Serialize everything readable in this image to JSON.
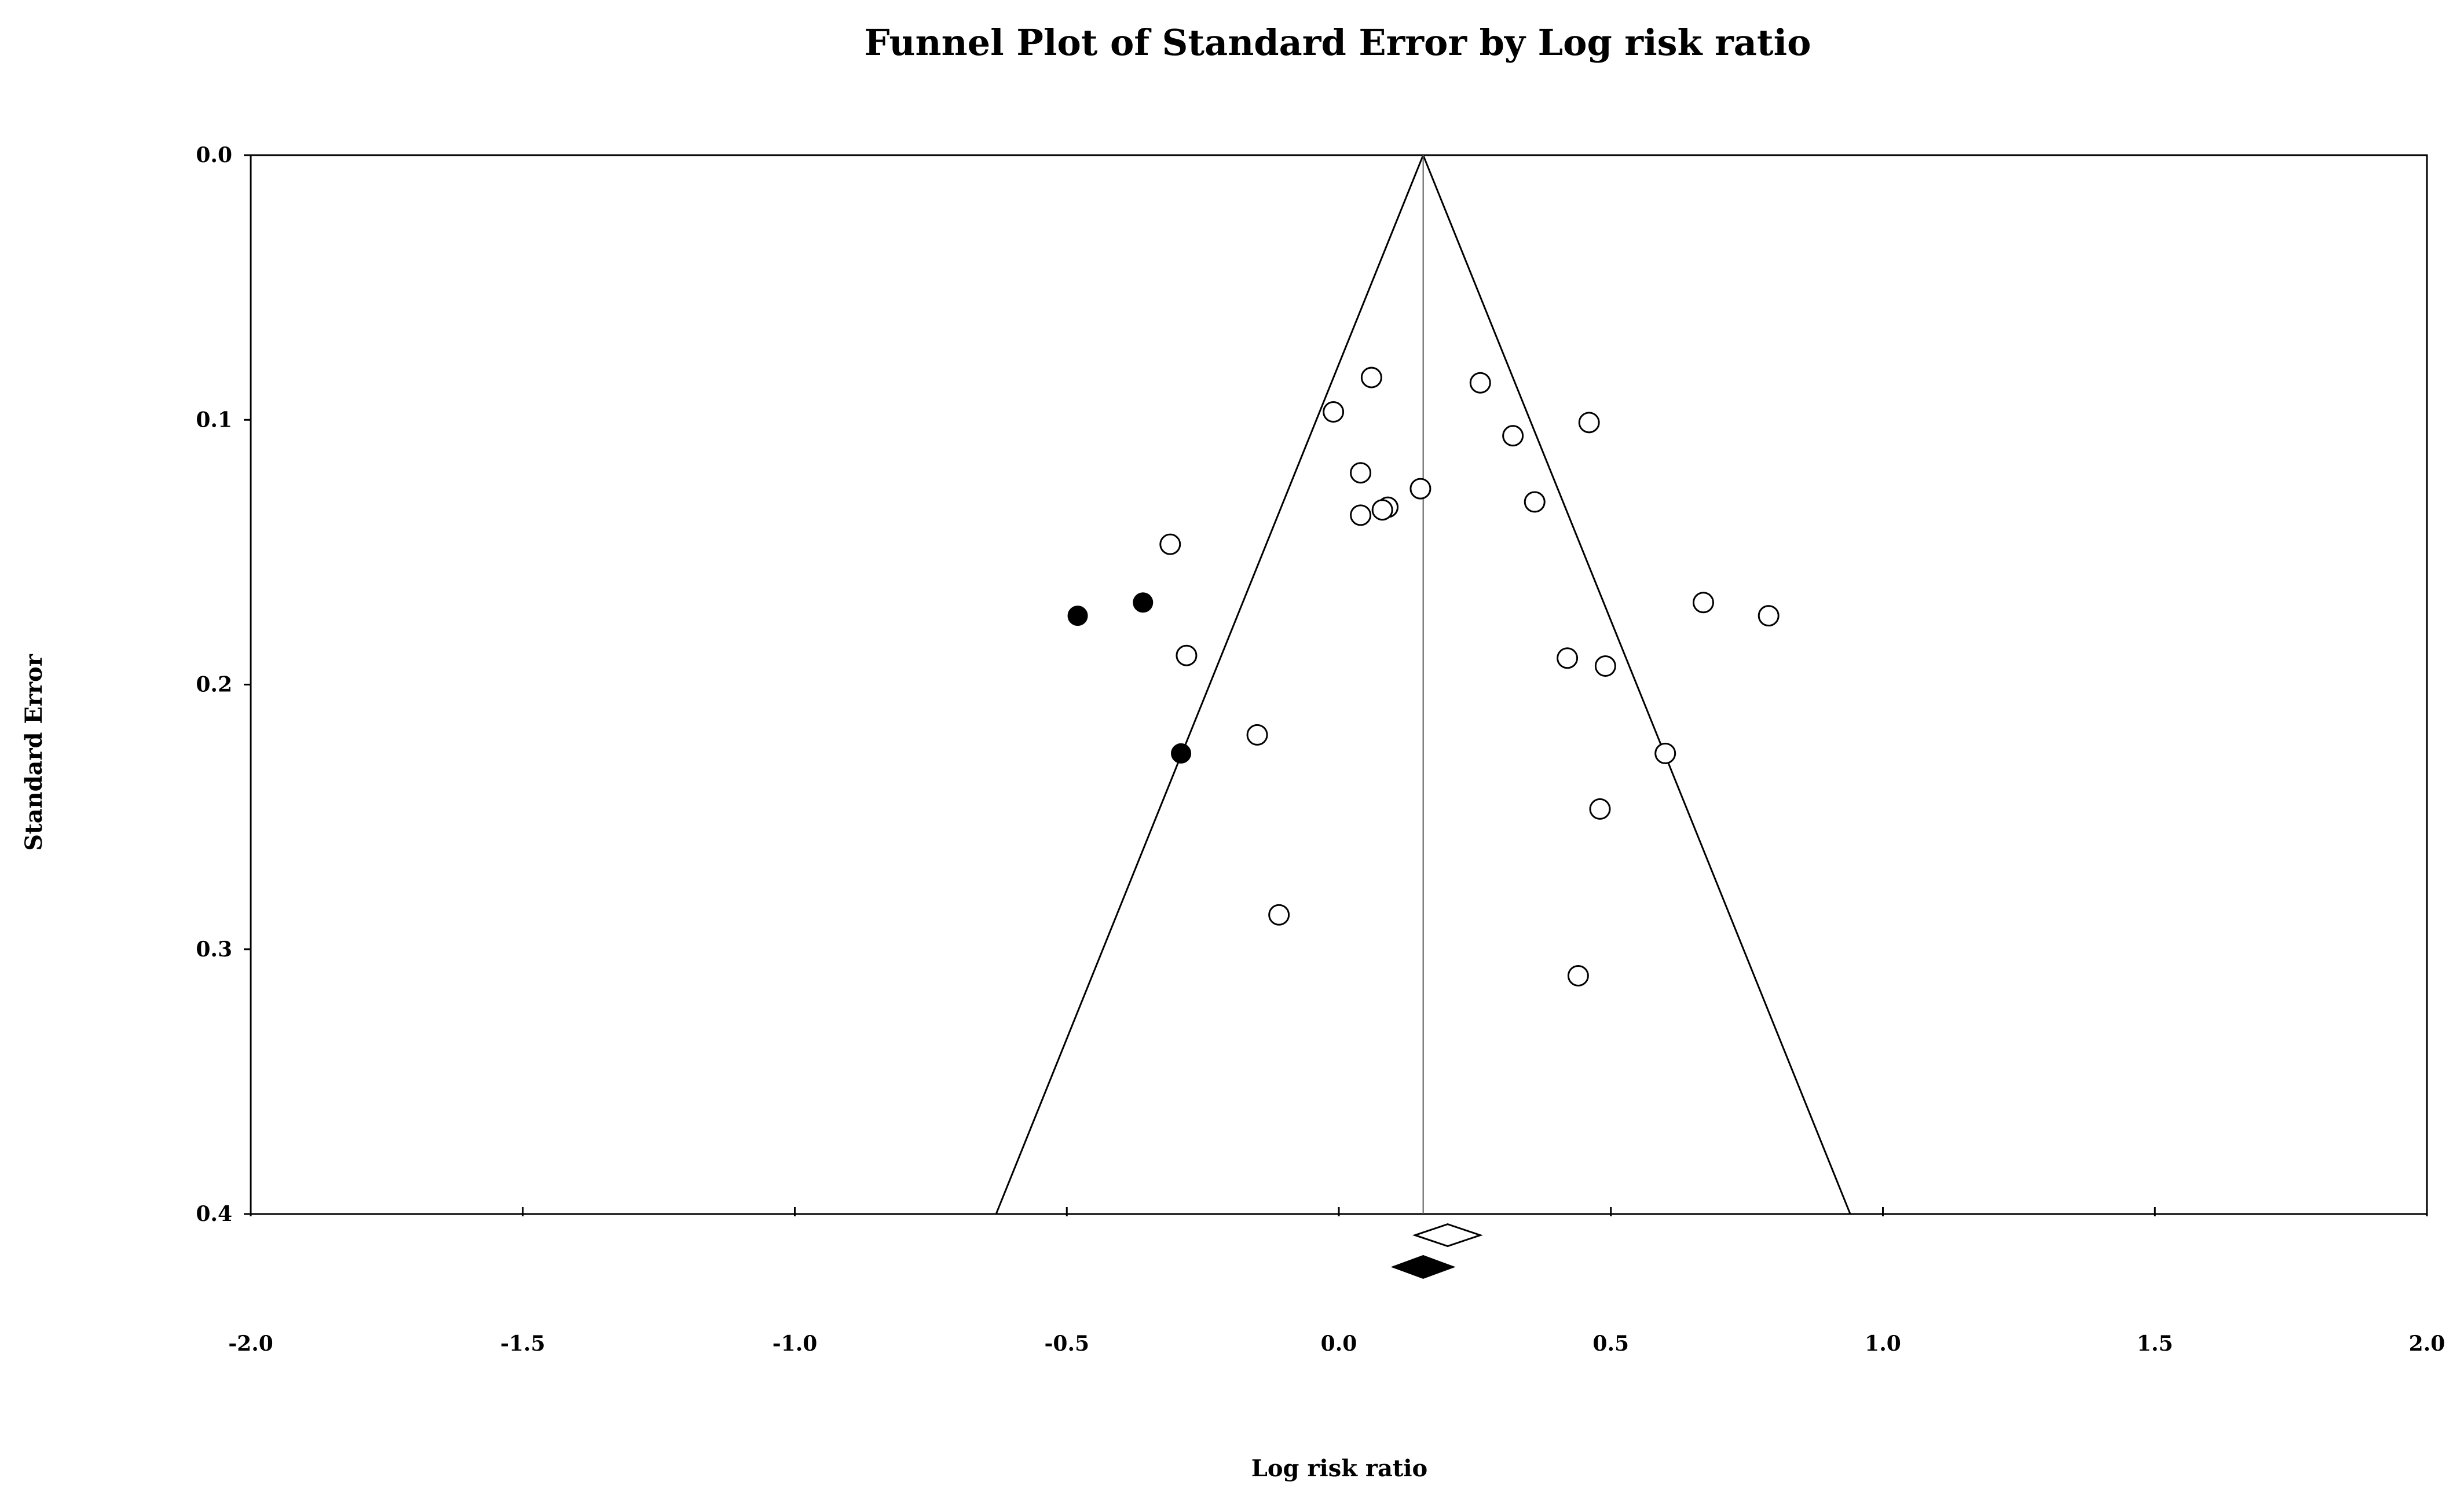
{
  "chart_data": {
    "type": "scatter",
    "subtype": "funnel plot",
    "title": "Funnel Plot of Standard Error by Log risk ratio",
    "xlabel": "Log risk ratio",
    "ylabel": "Standard Error",
    "xlim": [
      -2.0,
      2.0
    ],
    "ylim": [
      0.0,
      0.4
    ],
    "y_inverted": true,
    "xticks": [
      "-2.0",
      "-1.5",
      "-1.0",
      "-0.5",
      "0.0",
      "0.5",
      "1.0",
      "1.5",
      "2.0"
    ],
    "yticks": [
      "0.0",
      "0.1",
      "0.2",
      "0.3",
      "0.4"
    ],
    "grid": false,
    "colors": {
      "observed": "#ffffff",
      "imputed": "#000000",
      "line": "#000000"
    },
    "pooled_estimate": 0.155,
    "funnel_bounds_at_se_0_4": [
      -0.63,
      0.94
    ],
    "series": [
      {
        "style": "open-circle",
        "x": [
          0.06,
          0.26,
          -0.01,
          0.46,
          0.32,
          0.04,
          0.15,
          0.36,
          0.09,
          0.08,
          0.04,
          -0.31,
          -0.28,
          0.67,
          0.79,
          0.42,
          0.49,
          -0.15,
          0.6,
          0.48,
          -0.11,
          0.44
        ],
        "y": [
          0.084,
          0.086,
          0.097,
          0.101,
          0.106,
          0.12,
          0.126,
          0.131,
          0.133,
          0.134,
          0.136,
          0.147,
          0.189,
          0.169,
          0.174,
          0.19,
          0.193,
          0.219,
          0.226,
          0.247,
          0.287,
          0.31
        ]
      },
      {
        "style": "filled-circle",
        "x": [
          -0.48,
          -0.36,
          -0.29
        ],
        "y": [
          0.174,
          0.169,
          0.226
        ]
      }
    ],
    "summary_diamonds": [
      {
        "style": "open-diamond",
        "center": 0.2,
        "lower": 0.14,
        "upper": 0.26,
        "level": 0.408
      },
      {
        "style": "filled-diamond",
        "center": 0.155,
        "lower": 0.1,
        "upper": 0.21,
        "level": 0.42
      }
    ]
  }
}
